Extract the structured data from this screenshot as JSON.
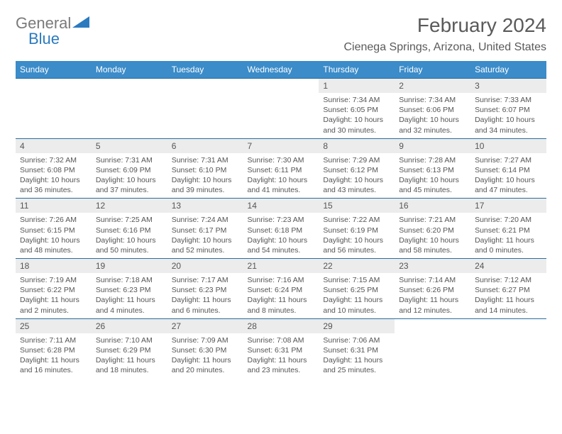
{
  "logo": {
    "part1": "General",
    "part2": "Blue"
  },
  "title": "February 2024",
  "location": "Cienega Springs, Arizona, United States",
  "colors": {
    "header_bg": "#3b8cc9",
    "header_text": "#ffffff",
    "daynum_bg": "#ececec",
    "border": "#2a6ea0",
    "text": "#555555",
    "logo_gray": "#7a7a7a",
    "logo_blue": "#2b7abf"
  },
  "day_names": [
    "Sunday",
    "Monday",
    "Tuesday",
    "Wednesday",
    "Thursday",
    "Friday",
    "Saturday"
  ],
  "weeks": [
    [
      null,
      null,
      null,
      null,
      {
        "n": "1",
        "sr": "7:34 AM",
        "ss": "6:05 PM",
        "dl": "10 hours and 30 minutes."
      },
      {
        "n": "2",
        "sr": "7:34 AM",
        "ss": "6:06 PM",
        "dl": "10 hours and 32 minutes."
      },
      {
        "n": "3",
        "sr": "7:33 AM",
        "ss": "6:07 PM",
        "dl": "10 hours and 34 minutes."
      }
    ],
    [
      {
        "n": "4",
        "sr": "7:32 AM",
        "ss": "6:08 PM",
        "dl": "10 hours and 36 minutes."
      },
      {
        "n": "5",
        "sr": "7:31 AM",
        "ss": "6:09 PM",
        "dl": "10 hours and 37 minutes."
      },
      {
        "n": "6",
        "sr": "7:31 AM",
        "ss": "6:10 PM",
        "dl": "10 hours and 39 minutes."
      },
      {
        "n": "7",
        "sr": "7:30 AM",
        "ss": "6:11 PM",
        "dl": "10 hours and 41 minutes."
      },
      {
        "n": "8",
        "sr": "7:29 AM",
        "ss": "6:12 PM",
        "dl": "10 hours and 43 minutes."
      },
      {
        "n": "9",
        "sr": "7:28 AM",
        "ss": "6:13 PM",
        "dl": "10 hours and 45 minutes."
      },
      {
        "n": "10",
        "sr": "7:27 AM",
        "ss": "6:14 PM",
        "dl": "10 hours and 47 minutes."
      }
    ],
    [
      {
        "n": "11",
        "sr": "7:26 AM",
        "ss": "6:15 PM",
        "dl": "10 hours and 48 minutes."
      },
      {
        "n": "12",
        "sr": "7:25 AM",
        "ss": "6:16 PM",
        "dl": "10 hours and 50 minutes."
      },
      {
        "n": "13",
        "sr": "7:24 AM",
        "ss": "6:17 PM",
        "dl": "10 hours and 52 minutes."
      },
      {
        "n": "14",
        "sr": "7:23 AM",
        "ss": "6:18 PM",
        "dl": "10 hours and 54 minutes."
      },
      {
        "n": "15",
        "sr": "7:22 AM",
        "ss": "6:19 PM",
        "dl": "10 hours and 56 minutes."
      },
      {
        "n": "16",
        "sr": "7:21 AM",
        "ss": "6:20 PM",
        "dl": "10 hours and 58 minutes."
      },
      {
        "n": "17",
        "sr": "7:20 AM",
        "ss": "6:21 PM",
        "dl": "11 hours and 0 minutes."
      }
    ],
    [
      {
        "n": "18",
        "sr": "7:19 AM",
        "ss": "6:22 PM",
        "dl": "11 hours and 2 minutes."
      },
      {
        "n": "19",
        "sr": "7:18 AM",
        "ss": "6:23 PM",
        "dl": "11 hours and 4 minutes."
      },
      {
        "n": "20",
        "sr": "7:17 AM",
        "ss": "6:23 PM",
        "dl": "11 hours and 6 minutes."
      },
      {
        "n": "21",
        "sr": "7:16 AM",
        "ss": "6:24 PM",
        "dl": "11 hours and 8 minutes."
      },
      {
        "n": "22",
        "sr": "7:15 AM",
        "ss": "6:25 PM",
        "dl": "11 hours and 10 minutes."
      },
      {
        "n": "23",
        "sr": "7:14 AM",
        "ss": "6:26 PM",
        "dl": "11 hours and 12 minutes."
      },
      {
        "n": "24",
        "sr": "7:12 AM",
        "ss": "6:27 PM",
        "dl": "11 hours and 14 minutes."
      }
    ],
    [
      {
        "n": "25",
        "sr": "7:11 AM",
        "ss": "6:28 PM",
        "dl": "11 hours and 16 minutes."
      },
      {
        "n": "26",
        "sr": "7:10 AM",
        "ss": "6:29 PM",
        "dl": "11 hours and 18 minutes."
      },
      {
        "n": "27",
        "sr": "7:09 AM",
        "ss": "6:30 PM",
        "dl": "11 hours and 20 minutes."
      },
      {
        "n": "28",
        "sr": "7:08 AM",
        "ss": "6:31 PM",
        "dl": "11 hours and 23 minutes."
      },
      {
        "n": "29",
        "sr": "7:06 AM",
        "ss": "6:31 PM",
        "dl": "11 hours and 25 minutes."
      },
      null,
      null
    ]
  ],
  "labels": {
    "sunrise": "Sunrise: ",
    "sunset": "Sunset: ",
    "daylight": "Daylight: "
  }
}
